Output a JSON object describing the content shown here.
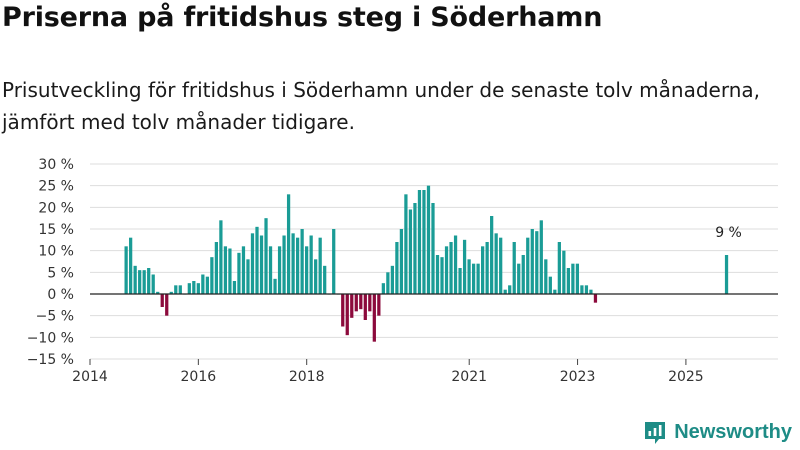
{
  "title": "Priserna på fritidshus steg i Söderhamn",
  "subtitle": "Prisutveckling för fritidshus i Söderhamn under de senaste tolv månaderna, jämfört med tolv månader tidigare.",
  "brand": "Newsworthy",
  "colors": {
    "positive": "#1a9c96",
    "negative": "#8c0a3c",
    "grid": "#dddddd",
    "zero": "#222222",
    "brand": "#1e8c86"
  },
  "chart_data": {
    "type": "bar",
    "title": "Priserna på fritidshus steg i Söderhamn",
    "ylabel": "",
    "xlabel": "",
    "ylim": [
      -15,
      30
    ],
    "xlim": [
      2014,
      2026.7
    ],
    "y_ticks": [
      {
        "value": 30,
        "label": "30 %"
      },
      {
        "value": 25,
        "label": "25 %"
      },
      {
        "value": 20,
        "label": "20 %"
      },
      {
        "value": 15,
        "label": "15 %"
      },
      {
        "value": 10,
        "label": "10 %"
      },
      {
        "value": 5,
        "label": "5 %"
      },
      {
        "value": 0,
        "label": "0 %"
      },
      {
        "value": -5,
        "label": "−5 %"
      },
      {
        "value": -10,
        "label": "−10 %"
      },
      {
        "value": -15,
        "label": "−15 %"
      }
    ],
    "x_ticks": [
      {
        "value": 2014,
        "label": "2014"
      },
      {
        "value": 2016,
        "label": "2016"
      },
      {
        "value": 2018,
        "label": "2018"
      },
      {
        "value": 2021,
        "label": "2021"
      },
      {
        "value": 2023,
        "label": "2023"
      },
      {
        "value": 2025,
        "label": "2025"
      }
    ],
    "start": 2014.667,
    "step": 0.0833,
    "values": [
      11,
      13,
      6.5,
      5.5,
      5.5,
      6,
      4.5,
      0.5,
      -3,
      -5,
      0.5,
      2,
      2,
      0,
      2.5,
      3,
      2.5,
      4.5,
      4,
      8.5,
      12,
      17,
      11,
      10.5,
      3,
      9.5,
      11,
      8,
      14,
      15.5,
      13.5,
      17.5,
      11,
      3.5,
      11,
      13.5,
      23,
      14,
      13,
      15,
      11,
      13.5,
      8,
      13,
      6.5,
      0,
      15,
      0,
      -7.5,
      -9.5,
      -5.5,
      -4,
      -3.5,
      -6,
      -4,
      -11,
      -5,
      2.5,
      5,
      6.5,
      12,
      15,
      23,
      19.5,
      21,
      24,
      24,
      25,
      21,
      9,
      8.5,
      11,
      12,
      13.5,
      6,
      12.5,
      8,
      7,
      7,
      11,
      12,
      18,
      14,
      13,
      1,
      2,
      12,
      7,
      9,
      13,
      15,
      14.5,
      17,
      8,
      4,
      1,
      12,
      10,
      6,
      7,
      7,
      2,
      2,
      1,
      -2
    ],
    "extra": [
      {
        "x": 2025.75,
        "value": 9
      }
    ],
    "annotation": {
      "x": 2025.75,
      "value": 9,
      "label": "9 %"
    }
  }
}
